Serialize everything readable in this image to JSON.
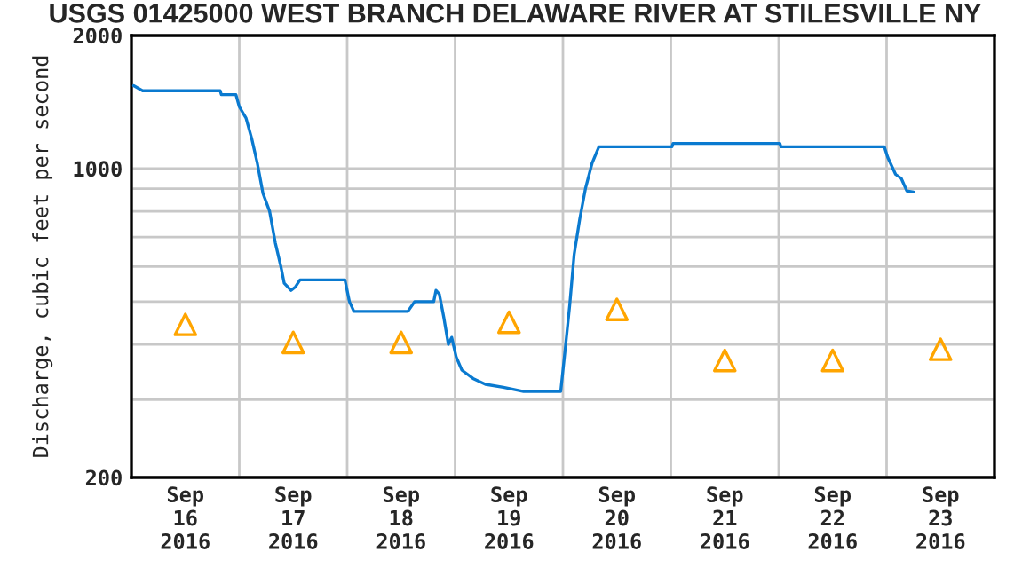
{
  "chart_data": {
    "type": "line",
    "title": "USGS 01425000 WEST BRANCH DELAWARE RIVER AT STILESVILLE NY",
    "ylabel": "Discharge, cubic feet per second",
    "series": [
      {
        "color": "#0a7ad0",
        "line_style": "solid",
        "marker": "none",
        "x": [
          "2016-09-16T00:30",
          "2016-09-16T02:30",
          "2016-09-16T19:45",
          "2016-09-16T20:00",
          "2016-09-16T23:15",
          "2016-09-17T00:00",
          "2016-09-17T01:30",
          "2016-09-17T02:45",
          "2016-09-17T04:00",
          "2016-09-17T05:15",
          "2016-09-17T06:45",
          "2016-09-17T08:00",
          "2016-09-17T09:15",
          "2016-09-17T10:00",
          "2016-09-17T11:30",
          "2016-09-17T12:30",
          "2016-09-17T13:30",
          "2016-09-17T23:30",
          "2016-09-18T00:30",
          "2016-09-18T01:30",
          "2016-09-18T13:30",
          "2016-09-18T15:00",
          "2016-09-18T19:15",
          "2016-09-18T19:45",
          "2016-09-18T20:30",
          "2016-09-18T21:30",
          "2016-09-18T22:30",
          "2016-09-18T23:15",
          "2016-09-19T00:15",
          "2016-09-19T01:30",
          "2016-09-19T04:00",
          "2016-09-19T06:45",
          "2016-09-19T10:45",
          "2016-09-19T15:15",
          "2016-09-19T23:30",
          "2016-09-20T00:30",
          "2016-09-20T01:30",
          "2016-09-20T02:30",
          "2016-09-20T03:45",
          "2016-09-20T05:00",
          "2016-09-20T06:30",
          "2016-09-20T08:00",
          "2016-09-21T00:15",
          "2016-09-21T00:30",
          "2016-09-22T00:15",
          "2016-09-22T00:30",
          "2016-09-22T23:30",
          "2016-09-23T00:15",
          "2016-09-23T02:00",
          "2016-09-23T03:15",
          "2016-09-23T04:30",
          "2016-09-23T06:00"
        ],
        "values": [
          1540,
          1500,
          1500,
          1470,
          1470,
          1380,
          1300,
          1170,
          1030,
          880,
          800,
          680,
          600,
          550,
          530,
          540,
          560,
          560,
          500,
          475,
          475,
          500,
          500,
          530,
          520,
          460,
          400,
          415,
          375,
          350,
          335,
          325,
          320,
          313,
          313,
          390,
          490,
          640,
          770,
          900,
          1030,
          1120,
          1120,
          1140,
          1140,
          1120,
          1120,
          1060,
          970,
          950,
          890,
          885
        ]
      },
      {
        "type": "scatter",
        "color": "#ffa500",
        "marker": "triangle",
        "x": [
          "2016-09-16T12:00",
          "2016-09-17T12:00",
          "2016-09-18T12:00",
          "2016-09-19T12:00",
          "2016-09-20T12:00",
          "2016-09-21T12:00",
          "2016-09-22T12:00",
          "2016-09-23T12:00"
        ],
        "values": [
          444,
          404,
          404,
          449,
          480,
          368,
          368,
          390
        ]
      }
    ],
    "log": "y",
    "ylim": [
      200,
      2000
    ],
    "yticks": [
      200,
      {
        "value": 300,
        "label": null
      },
      {
        "value": 400,
        "label": null
      },
      {
        "value": 500,
        "label": null
      },
      {
        "value": 600,
        "label": null
      },
      {
        "value": 700,
        "label": null
      },
      {
        "value": 800,
        "label": null
      },
      {
        "value": 900,
        "label": null
      },
      1000,
      2000
    ],
    "xlim": [
      "2016-09-16T00:00",
      "2016-09-24T00:00"
    ],
    "xticks": [
      {
        "value": "2016-09-16T00:00",
        "label": null
      },
      {
        "value": "2016-09-16T12:00",
        "label": "Sep\n16\n2016"
      },
      {
        "value": "2016-09-17T00:00",
        "label": null
      },
      {
        "value": "2016-09-17T12:00",
        "label": "Sep\n17\n2016"
      },
      {
        "value": "2016-09-18T00:00",
        "label": null
      },
      {
        "value": "2016-09-18T12:00",
        "label": "Sep\n18\n2016"
      },
      {
        "value": "2016-09-19T00:00",
        "label": null
      },
      {
        "value": "2016-09-19T12:00",
        "label": "Sep\n19\n2016"
      },
      {
        "value": "2016-09-20T00:00",
        "label": null
      },
      {
        "value": "2016-09-20T12:00",
        "label": "Sep\n20\n2016"
      },
      {
        "value": "2016-09-21T00:00",
        "label": null
      },
      {
        "value": "2016-09-21T12:00",
        "label": "Sep\n21\n2016"
      },
      {
        "value": "2016-09-22T00:00",
        "label": null
      },
      {
        "value": "2016-09-22T12:00",
        "label": "Sep\n22\n2016"
      },
      {
        "value": "2016-09-23T00:00",
        "label": null
      },
      {
        "value": "2016-09-23T12:00",
        "label": "Sep\n23\n2016"
      },
      {
        "value": "2016-09-24T00:00",
        "label": null
      }
    ],
    "grid": true,
    "legend": false
  }
}
